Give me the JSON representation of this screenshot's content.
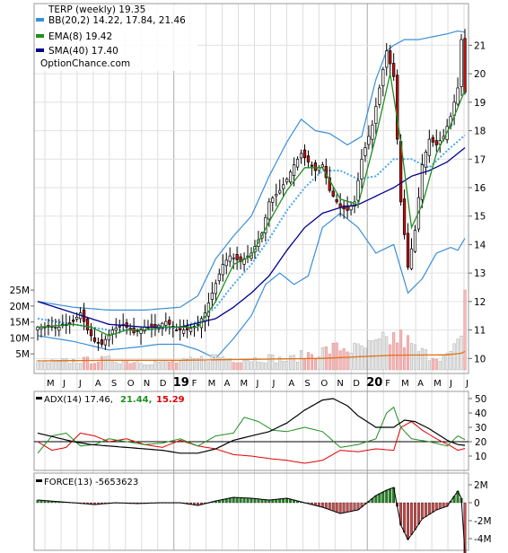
{
  "chart_data": [
    {
      "type": "candlestick",
      "title": "TERP (weekly) 19.35",
      "legend": [
        {
          "label": "BB(20,2) 14.22, 17.84, 21.46",
          "color": "#3a8fd8"
        },
        {
          "label": "EMA(8) 19.42",
          "color": "#1f8f1f"
        },
        {
          "label": "SMA(40) 17.40",
          "color": "#00008b"
        }
      ],
      "watermark": "OptionChance.com",
      "y_ticks": [
        10,
        11,
        12,
        13,
        14,
        15,
        16,
        17,
        18,
        19,
        20,
        21
      ],
      "ylim": [
        9.6,
        22.4
      ],
      "month_labels": [
        "M",
        "J",
        "J",
        "A",
        "S",
        "O",
        "N",
        "D",
        "19",
        "F",
        "M",
        "A",
        "M",
        "J",
        "J",
        "A",
        "S",
        "O",
        "N",
        "D",
        "20",
        "F",
        "M",
        "A",
        "M",
        "J",
        "J"
      ],
      "year_labels": [
        "19",
        "20"
      ],
      "price_anchors": [
        [
          0,
          11.1
        ],
        [
          6,
          11.1
        ],
        [
          10,
          11.3
        ],
        [
          12,
          11.6
        ],
        [
          14,
          11.0
        ],
        [
          16,
          10.6
        ],
        [
          18,
          10.5
        ],
        [
          21,
          11.0
        ],
        [
          24,
          11.2
        ],
        [
          27,
          10.9
        ],
        [
          30,
          11.1
        ],
        [
          33,
          11.1
        ],
        [
          36,
          11.3
        ],
        [
          39,
          11.0
        ],
        [
          42,
          11.0
        ],
        [
          45,
          11.2
        ],
        [
          47,
          11.6
        ],
        [
          49,
          12.3
        ],
        [
          52,
          13.3
        ],
        [
          54,
          13.6
        ],
        [
          57,
          13.4
        ],
        [
          60,
          13.7
        ],
        [
          63,
          14.4
        ],
        [
          65,
          15.5
        ],
        [
          68,
          15.9
        ],
        [
          70,
          16.3
        ],
        [
          72,
          16.8
        ],
        [
          74,
          17.2
        ],
        [
          76,
          16.9
        ],
        [
          78,
          16.6
        ],
        [
          80,
          16.8
        ],
        [
          82,
          15.9
        ],
        [
          85,
          15.3
        ],
        [
          87,
          15.2
        ],
        [
          89,
          15.5
        ],
        [
          91,
          17.0
        ],
        [
          94,
          18.2
        ],
        [
          96,
          19.5
        ],
        [
          98,
          20.8
        ],
        [
          100,
          19.9
        ],
        [
          102,
          15.5
        ],
        [
          104,
          13.2
        ],
        [
          106,
          14.5
        ],
        [
          108,
          16.8
        ],
        [
          110,
          17.7
        ],
        [
          112,
          17.5
        ],
        [
          114,
          17.8
        ],
        [
          116,
          18.5
        ],
        [
          118,
          19.5
        ],
        [
          119,
          21.2
        ],
        [
          120,
          19.35
        ]
      ],
      "bb_mid_anchors": [
        [
          0,
          11.4
        ],
        [
          10,
          11.2
        ],
        [
          20,
          11.0
        ],
        [
          30,
          11.0
        ],
        [
          40,
          11.1
        ],
        [
          45,
          11.3
        ],
        [
          50,
          11.8
        ],
        [
          55,
          12.6
        ],
        [
          60,
          13.3
        ],
        [
          65,
          14.2
        ],
        [
          70,
          15.2
        ],
        [
          75,
          16.0
        ],
        [
          80,
          16.6
        ],
        [
          85,
          16.6
        ],
        [
          90,
          16.3
        ],
        [
          95,
          16.4
        ],
        [
          100,
          17.0
        ],
        [
          105,
          17.0
        ],
        [
          110,
          16.7
        ],
        [
          115,
          17.3
        ],
        [
          120,
          17.84
        ]
      ],
      "bb_up_anchors": [
        [
          0,
          12.0
        ],
        [
          10,
          11.8
        ],
        [
          20,
          11.7
        ],
        [
          30,
          11.7
        ],
        [
          40,
          11.8
        ],
        [
          45,
          12.2
        ],
        [
          50,
          13.5
        ],
        [
          55,
          14.3
        ],
        [
          60,
          15.0
        ],
        [
          65,
          16.4
        ],
        [
          70,
          17.6
        ],
        [
          74,
          18.4
        ],
        [
          78,
          18.0
        ],
        [
          82,
          17.9
        ],
        [
          87,
          17.5
        ],
        [
          91,
          17.8
        ],
        [
          95,
          19.8
        ],
        [
          98,
          20.8
        ],
        [
          100,
          21.0
        ],
        [
          103,
          21.2
        ],
        [
          107,
          21.2
        ],
        [
          111,
          21.3
        ],
        [
          115,
          21.4
        ],
        [
          118,
          21.5
        ],
        [
          120,
          21.46
        ]
      ],
      "bb_low_anchors": [
        [
          0,
          10.8
        ],
        [
          10,
          10.6
        ],
        [
          20,
          10.3
        ],
        [
          28,
          10.4
        ],
        [
          34,
          10.5
        ],
        [
          40,
          10.5
        ],
        [
          45,
          10.3
        ],
        [
          50,
          10.0
        ],
        [
          55,
          10.7
        ],
        [
          60,
          11.5
        ],
        [
          64,
          12.6
        ],
        [
          68,
          13.0
        ],
        [
          72,
          12.6
        ],
        [
          76,
          12.9
        ],
        [
          80,
          14.6
        ],
        [
          85,
          15.1
        ],
        [
          90,
          14.6
        ],
        [
          95,
          13.7
        ],
        [
          100,
          14.0
        ],
        [
          104,
          12.3
        ],
        [
          108,
          12.8
        ],
        [
          112,
          13.7
        ],
        [
          116,
          13.9
        ],
        [
          118,
          13.8
        ],
        [
          120,
          14.22
        ]
      ],
      "ema_anchors": [
        [
          0,
          11.1
        ],
        [
          10,
          11.2
        ],
        [
          15,
          11.1
        ],
        [
          20,
          10.8
        ],
        [
          25,
          11.0
        ],
        [
          30,
          11.0
        ],
        [
          35,
          11.1
        ],
        [
          40,
          11.1
        ],
        [
          45,
          11.1
        ],
        [
          50,
          12.0
        ],
        [
          55,
          13.3
        ],
        [
          60,
          13.6
        ],
        [
          65,
          14.8
        ],
        [
          70,
          15.9
        ],
        [
          75,
          16.7
        ],
        [
          80,
          16.7
        ],
        [
          85,
          15.6
        ],
        [
          90,
          15.4
        ],
        [
          95,
          17.8
        ],
        [
          99,
          20.0
        ],
        [
          102,
          17.6
        ],
        [
          105,
          14.6
        ],
        [
          108,
          15.4
        ],
        [
          112,
          17.2
        ],
        [
          116,
          18.2
        ],
        [
          120,
          19.42
        ]
      ],
      "sma_anchors": [
        [
          0,
          12.0
        ],
        [
          10,
          11.6
        ],
        [
          20,
          11.2
        ],
        [
          30,
          11.1
        ],
        [
          40,
          11.1
        ],
        [
          50,
          11.4
        ],
        [
          55,
          11.8
        ],
        [
          60,
          12.3
        ],
        [
          65,
          12.9
        ],
        [
          70,
          13.8
        ],
        [
          75,
          14.6
        ],
        [
          80,
          15.1
        ],
        [
          85,
          15.3
        ],
        [
          90,
          15.4
        ],
        [
          95,
          15.7
        ],
        [
          100,
          16.0
        ],
        [
          105,
          16.4
        ],
        [
          110,
          16.6
        ],
        [
          115,
          16.9
        ],
        [
          120,
          17.4
        ]
      ]
    },
    {
      "type": "bar",
      "title": "Volume",
      "y_ticks": [
        "5M",
        "10M",
        "15M",
        "20M",
        "25M"
      ],
      "y_tick_values": [
        5,
        10,
        15,
        20,
        25
      ],
      "ylim": [
        0,
        27
      ],
      "volume_anchors": [
        [
          0,
          2.2
        ],
        [
          10,
          2.8
        ],
        [
          20,
          3.2
        ],
        [
          30,
          2.5
        ],
        [
          40,
          2.4
        ],
        [
          45,
          3.2
        ],
        [
          50,
          4.3
        ],
        [
          55,
          3.4
        ],
        [
          60,
          3.4
        ],
        [
          65,
          3.8
        ],
        [
          70,
          3.0
        ],
        [
          75,
          4.7
        ],
        [
          80,
          5.8
        ],
        [
          85,
          7.0
        ],
        [
          90,
          6.3
        ],
        [
          95,
          7.6
        ],
        [
          100,
          10.0
        ],
        [
          103,
          9.5
        ],
        [
          106,
          6.3
        ],
        [
          110,
          4.6
        ],
        [
          115,
          4.2
        ],
        [
          118,
          7.5
        ],
        [
          119,
          8.5
        ],
        [
          120,
          25.0
        ]
      ],
      "volume_ma_anchors": [
        [
          0,
          2.8
        ],
        [
          20,
          3.0
        ],
        [
          40,
          3.0
        ],
        [
          60,
          3.3
        ],
        [
          80,
          3.6
        ],
        [
          100,
          4.6
        ],
        [
          115,
          4.7
        ],
        [
          119,
          5.2
        ],
        [
          120,
          5.8
        ]
      ]
    },
    {
      "type": "line",
      "title": "ADX(14) 17.46,",
      "series": [
        {
          "name": "ADX(14) 17.46,",
          "color": "#000000"
        },
        {
          "name": "21.44,",
          "color": "#1f8f1f"
        },
        {
          "name": "15.29",
          "color": "#e00000"
        }
      ],
      "y_ticks": [
        10,
        20,
        30,
        40,
        50
      ],
      "ylim": [
        0,
        55
      ],
      "reference_line": 20,
      "adx_anchors": [
        [
          0,
          26.0
        ],
        [
          5,
          23.0
        ],
        [
          10,
          20.0
        ],
        [
          15,
          18.0
        ],
        [
          20,
          17.0
        ],
        [
          25,
          16.0
        ],
        [
          30,
          15.0
        ],
        [
          35,
          14.0
        ],
        [
          40,
          12.0
        ],
        [
          45,
          12.0
        ],
        [
          50,
          15.0
        ],
        [
          55,
          21.0
        ],
        [
          60,
          24.0
        ],
        [
          65,
          27.0
        ],
        [
          70,
          33.0
        ],
        [
          75,
          42.0
        ],
        [
          80,
          49.0
        ],
        [
          83,
          50.0
        ],
        [
          87,
          45.0
        ],
        [
          90,
          38.0
        ],
        [
          95,
          30.0
        ],
        [
          100,
          30.0
        ],
        [
          103,
          35.0
        ],
        [
          106,
          34.0
        ],
        [
          110,
          29.0
        ],
        [
          115,
          21.0
        ],
        [
          118,
          18.0
        ],
        [
          120,
          17.46
        ]
      ],
      "pdi_anchors": [
        [
          0,
          12.0
        ],
        [
          4,
          24.0
        ],
        [
          8,
          26.0
        ],
        [
          12,
          17.0
        ],
        [
          16,
          18.0
        ],
        [
          20,
          22.0
        ],
        [
          25,
          20.0
        ],
        [
          30,
          18.0
        ],
        [
          35,
          19.0
        ],
        [
          40,
          22.0
        ],
        [
          45,
          17.0
        ],
        [
          50,
          24.0
        ],
        [
          55,
          26.0
        ],
        [
          58,
          37.0
        ],
        [
          62,
          34.0
        ],
        [
          66,
          28.0
        ],
        [
          70,
          27.0
        ],
        [
          75,
          30.0
        ],
        [
          80,
          27.0
        ],
        [
          85,
          16.0
        ],
        [
          90,
          18.0
        ],
        [
          95,
          22.0
        ],
        [
          98,
          40.0
        ],
        [
          100,
          44.0
        ],
        [
          102,
          30.0
        ],
        [
          105,
          22.0
        ],
        [
          110,
          20.0
        ],
        [
          115,
          17.0
        ],
        [
          118,
          24.0
        ],
        [
          120,
          21.44
        ]
      ],
      "mdi_anchors": [
        [
          0,
          20.0
        ],
        [
          4,
          14.0
        ],
        [
          8,
          16.0
        ],
        [
          12,
          26.0
        ],
        [
          16,
          24.0
        ],
        [
          20,
          20.0
        ],
        [
          25,
          22.0
        ],
        [
          30,
          18.0
        ],
        [
          35,
          16.0
        ],
        [
          40,
          21.0
        ],
        [
          45,
          17.0
        ],
        [
          50,
          15.0
        ],
        [
          55,
          11.0
        ],
        [
          60,
          10.0
        ],
        [
          66,
          8.0
        ],
        [
          70,
          7.0
        ],
        [
          75,
          5.0
        ],
        [
          80,
          7.0
        ],
        [
          85,
          14.0
        ],
        [
          90,
          13.0
        ],
        [
          95,
          15.0
        ],
        [
          100,
          14.0
        ],
        [
          102,
          30.0
        ],
        [
          105,
          34.0
        ],
        [
          108,
          28.0
        ],
        [
          112,
          22.0
        ],
        [
          116,
          17.0
        ],
        [
          118,
          14.0
        ],
        [
          120,
          15.29
        ]
      ]
    },
    {
      "type": "bar",
      "title": "FORCE(13) -5653623",
      "y_ticks": [
        "2M",
        "0",
        "-2M",
        "-4M"
      ],
      "y_tick_values": [
        2,
        0,
        -2,
        -4
      ],
      "ylim": [
        -5.3,
        3.3
      ],
      "force_anchors": [
        [
          0,
          0.3
        ],
        [
          10,
          0.0
        ],
        [
          16,
          -0.2
        ],
        [
          22,
          0.0
        ],
        [
          28,
          -0.1
        ],
        [
          34,
          0.0
        ],
        [
          40,
          0.0
        ],
        [
          45,
          -0.3
        ],
        [
          50,
          0.2
        ],
        [
          55,
          0.6
        ],
        [
          60,
          0.5
        ],
        [
          65,
          0.3
        ],
        [
          70,
          0.5
        ],
        [
          75,
          0.0
        ],
        [
          80,
          -0.5
        ],
        [
          85,
          -1.2
        ],
        [
          90,
          -0.8
        ],
        [
          95,
          0.8
        ],
        [
          98,
          1.4
        ],
        [
          100,
          1.7
        ],
        [
          102,
          -2.5
        ],
        [
          104,
          -4.1
        ],
        [
          106,
          -3.0
        ],
        [
          108,
          -1.8
        ],
        [
          112,
          -0.8
        ],
        [
          115,
          -0.4
        ],
        [
          118,
          1.3
        ],
        [
          119,
          0.5
        ],
        [
          120,
          -5.65
        ]
      ]
    }
  ]
}
